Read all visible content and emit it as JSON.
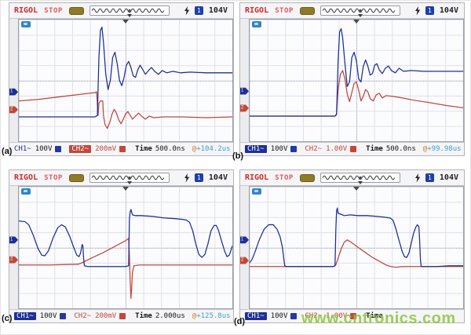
{
  "watermark": {
    "text": "www.cntronics.com",
    "color": "#8cc63e"
  },
  "colors": {
    "ch1_trace": "#1d2f96",
    "ch2_trace": "#c2473a"
  },
  "panels": [
    {
      "label": "(a)",
      "header": {
        "brand": "RIGOL",
        "status": "STOP",
        "trigger_source": "1",
        "trigger_level": "104V"
      },
      "footer": {
        "ch1": {
          "label": "CH1~",
          "value": "100V",
          "selected": false
        },
        "ch2": {
          "label": "CH2~",
          "value": "200mV",
          "selected": true
        },
        "time": {
          "label": "Time",
          "value": "500.0ns"
        },
        "offset": {
          "at": "@",
          "value": "+104.2us"
        }
      },
      "markers": {
        "ch1": 95,
        "ch2": 118
      },
      "waves": {
        "ch1": [
          [
            0,
            128
          ],
          [
            100,
            128
          ],
          [
            103,
            126
          ],
          [
            105,
            50
          ],
          [
            107,
            14
          ],
          [
            109,
            10
          ],
          [
            111,
            30
          ],
          [
            114,
            72
          ],
          [
            117,
            92
          ],
          [
            120,
            80
          ],
          [
            123,
            50
          ],
          [
            126,
            43
          ],
          [
            129,
            58
          ],
          [
            132,
            80
          ],
          [
            135,
            87
          ],
          [
            138,
            76
          ],
          [
            141,
            60
          ],
          [
            144,
            55
          ],
          [
            147,
            63
          ],
          [
            150,
            74
          ],
          [
            153,
            76
          ],
          [
            156,
            66
          ],
          [
            159,
            60
          ],
          [
            162,
            65
          ],
          [
            166,
            72
          ],
          [
            170,
            67
          ],
          [
            174,
            63
          ],
          [
            178,
            68
          ],
          [
            183,
            72
          ],
          [
            188,
            67
          ],
          [
            194,
            70
          ],
          [
            202,
            68
          ],
          [
            212,
            70
          ],
          [
            225,
            69
          ],
          [
            245,
            70
          ],
          [
            280,
            70
          ]
        ],
        "ch2": [
          [
            0,
            107
          ],
          [
            25,
            105
          ],
          [
            50,
            102
          ],
          [
            75,
            99
          ],
          [
            100,
            96
          ],
          [
            102,
            95
          ],
          [
            103,
            112
          ],
          [
            104,
            126
          ],
          [
            105,
            110
          ],
          [
            107,
            107
          ],
          [
            110,
            107
          ],
          [
            111,
            126
          ],
          [
            113,
            138
          ],
          [
            116,
            143
          ],
          [
            119,
            136
          ],
          [
            122,
            125
          ],
          [
            125,
            118
          ],
          [
            128,
            123
          ],
          [
            131,
            132
          ],
          [
            134,
            137
          ],
          [
            137,
            131
          ],
          [
            140,
            124
          ],
          [
            143,
            121
          ],
          [
            146,
            126
          ],
          [
            149,
            131
          ],
          [
            153,
            127
          ],
          [
            157,
            123
          ],
          [
            161,
            127
          ],
          [
            166,
            131
          ],
          [
            171,
            127
          ],
          [
            177,
            129
          ],
          [
            190,
            128
          ],
          [
            215,
            128
          ],
          [
            245,
            129
          ],
          [
            280,
            128
          ]
        ]
      }
    },
    {
      "label": "(b)",
      "header": {
        "brand": "RIGOL",
        "status": "STOP",
        "trigger_source": "1",
        "trigger_level": "104V"
      },
      "footer": {
        "ch1": {
          "label": "CH1~",
          "value": "100V",
          "selected": true
        },
        "ch2": {
          "label": "CH2~",
          "value": "1.00V",
          "selected": false
        },
        "time": {
          "label": "Time",
          "value": "500.0ns"
        },
        "offset": {
          "at": "@",
          "value": "+99.98us"
        }
      },
      "markers": {
        "ch1": 94,
        "ch2": 116
      },
      "waves": {
        "ch1": [
          [
            0,
            127
          ],
          [
            112,
            127
          ],
          [
            114,
            125
          ],
          [
            116,
            55
          ],
          [
            118,
            16
          ],
          [
            120,
            12
          ],
          [
            122,
            24
          ],
          [
            125,
            58
          ],
          [
            128,
            88
          ],
          [
            131,
            82
          ],
          [
            134,
            50
          ],
          [
            137,
            43
          ],
          [
            140,
            54
          ],
          [
            143,
            78
          ],
          [
            146,
            82
          ],
          [
            149,
            62
          ],
          [
            152,
            53
          ],
          [
            155,
            61
          ],
          [
            158,
            73
          ],
          [
            161,
            71
          ],
          [
            164,
            60
          ],
          [
            167,
            58
          ],
          [
            170,
            66
          ],
          [
            174,
            71
          ],
          [
            178,
            64
          ],
          [
            182,
            61
          ],
          [
            186,
            67
          ],
          [
            191,
            70
          ],
          [
            196,
            64
          ],
          [
            202,
            68
          ],
          [
            212,
            67
          ],
          [
            228,
            68
          ],
          [
            252,
            68
          ],
          [
            280,
            68
          ]
        ],
        "ch2": [
          [
            0,
            127
          ],
          [
            112,
            127
          ],
          [
            114,
            124
          ],
          [
            116,
            92
          ],
          [
            119,
            72
          ],
          [
            122,
            67
          ],
          [
            125,
            78
          ],
          [
            128,
            98
          ],
          [
            131,
            108
          ],
          [
            134,
            96
          ],
          [
            137,
            84
          ],
          [
            140,
            82
          ],
          [
            143,
            93
          ],
          [
            146,
            107
          ],
          [
            149,
            101
          ],
          [
            152,
            92
          ],
          [
            155,
            95
          ],
          [
            158,
            104
          ],
          [
            162,
            107
          ],
          [
            166,
            99
          ],
          [
            170,
            97
          ],
          [
            174,
            103
          ],
          [
            179,
            100
          ],
          [
            188,
            101
          ],
          [
            200,
            103
          ],
          [
            215,
            106
          ],
          [
            235,
            109
          ],
          [
            258,
            113
          ],
          [
            280,
            116
          ]
        ]
      }
    },
    {
      "label": "(c)",
      "header": {
        "brand": "RIGOL",
        "status": "STOP",
        "trigger_source": "1",
        "trigger_level": "104V"
      },
      "footer": {
        "ch1": {
          "label": "CH1~",
          "value": "100V",
          "selected": true
        },
        "ch2": {
          "label": "CH2~",
          "value": "200mV",
          "selected": false
        },
        "time": {
          "label": "Time",
          "value": "2.000us"
        },
        "offset": {
          "at": "@",
          "value": "+125.8us"
        }
      },
      "markers": {
        "ch1": 70,
        "ch2": 96
      },
      "waves": {
        "ch1": [
          [
            0,
            45
          ],
          [
            8,
            46
          ],
          [
            13,
            50
          ],
          [
            19,
            64
          ],
          [
            25,
            81
          ],
          [
            30,
            90
          ],
          [
            34,
            91
          ],
          [
            39,
            84
          ],
          [
            45,
            67
          ],
          [
            51,
            54
          ],
          [
            56,
            50
          ],
          [
            61,
            53
          ],
          [
            67,
            66
          ],
          [
            72,
            80
          ],
          [
            76,
            90
          ],
          [
            79,
            92
          ],
          [
            81,
            87
          ],
          [
            83,
            76
          ],
          [
            84,
            78
          ],
          [
            85,
            95
          ],
          [
            86,
            104
          ],
          [
            90,
            105
          ],
          [
            140,
            105
          ],
          [
            144,
            104
          ],
          [
            145,
            42
          ],
          [
            146,
            33
          ],
          [
            147,
            30
          ],
          [
            149,
            37
          ],
          [
            153,
            38
          ],
          [
            160,
            38
          ],
          [
            175,
            39
          ],
          [
            190,
            41
          ],
          [
            205,
            42
          ],
          [
            215,
            43
          ],
          [
            220,
            44
          ],
          [
            224,
            47
          ],
          [
            228,
            58
          ],
          [
            232,
            75
          ],
          [
            236,
            89
          ],
          [
            240,
            93
          ],
          [
            244,
            89
          ],
          [
            248,
            75
          ],
          [
            252,
            58
          ],
          [
            256,
            51
          ],
          [
            259,
            51
          ],
          [
            262,
            58
          ],
          [
            266,
            72
          ],
          [
            270,
            85
          ],
          [
            273,
            92
          ],
          [
            276,
            90
          ],
          [
            278,
            84
          ],
          [
            280,
            78
          ]
        ],
        "ch2": [
          [
            0,
            103
          ],
          [
            40,
            103
          ],
          [
            78,
            102
          ],
          [
            83,
            100
          ],
          [
            95,
            94
          ],
          [
            110,
            87
          ],
          [
            125,
            79
          ],
          [
            140,
            71
          ],
          [
            144,
            68
          ],
          [
            145,
            90
          ],
          [
            146,
            125
          ],
          [
            147,
            147
          ],
          [
            148,
            132
          ],
          [
            149,
            112
          ],
          [
            151,
            104
          ],
          [
            158,
            103
          ],
          [
            180,
            103
          ],
          [
            220,
            103
          ],
          [
            260,
            103
          ],
          [
            280,
            103
          ]
        ]
      }
    },
    {
      "label": "(d)",
      "header": {
        "brand": "RIGOL",
        "status": "STOP",
        "trigger_source": "1",
        "trigger_level": "104V"
      },
      "footer": {
        "ch1": {
          "label": "CH1~",
          "value": "100V",
          "selected": true
        },
        "ch2": {
          "label": "CH2~",
          "value": "1.00V",
          "selected": false
        },
        "time": {
          "label": "Time",
          "value": ""
        },
        "offset": {
          "at": "",
          "value": ""
        }
      },
      "markers": {
        "ch1": 70,
        "ch2": 97
      },
      "waves": {
        "ch1": [
          [
            0,
            100
          ],
          [
            3,
            96
          ],
          [
            7,
            86
          ],
          [
            13,
            69
          ],
          [
            19,
            56
          ],
          [
            25,
            50
          ],
          [
            31,
            50
          ],
          [
            36,
            56
          ],
          [
            40,
            66
          ],
          [
            43,
            80
          ],
          [
            45,
            96
          ],
          [
            46,
            104
          ],
          [
            48,
            105
          ],
          [
            80,
            105
          ],
          [
            110,
            105
          ],
          [
            112,
            104
          ],
          [
            113,
            58
          ],
          [
            114,
            32
          ],
          [
            115,
            28
          ],
          [
            116,
            35
          ],
          [
            119,
            36
          ],
          [
            124,
            38
          ],
          [
            132,
            37
          ],
          [
            142,
            38
          ],
          [
            154,
            38
          ],
          [
            166,
            39
          ],
          [
            176,
            40
          ],
          [
            184,
            41
          ],
          [
            188,
            44
          ],
          [
            192,
            56
          ],
          [
            196,
            71
          ],
          [
            200,
            85
          ],
          [
            203,
            92
          ],
          [
            206,
            93
          ],
          [
            209,
            87
          ],
          [
            212,
            74
          ],
          [
            215,
            61
          ],
          [
            218,
            53
          ],
          [
            220,
            50
          ],
          [
            222,
            53
          ],
          [
            223,
            72
          ],
          [
            224,
            96
          ],
          [
            225,
            105
          ],
          [
            230,
            105
          ],
          [
            245,
            105
          ],
          [
            262,
            104
          ],
          [
            280,
            104
          ]
        ],
        "ch2": [
          [
            0,
            105
          ],
          [
            60,
            105
          ],
          [
            110,
            105
          ],
          [
            113,
            103
          ],
          [
            116,
            94
          ],
          [
            120,
            82
          ],
          [
            124,
            73
          ],
          [
            128,
            70
          ],
          [
            133,
            73
          ],
          [
            141,
            79
          ],
          [
            151,
            86
          ],
          [
            161,
            93
          ],
          [
            170,
            98
          ],
          [
            179,
            103
          ],
          [
            185,
            105
          ],
          [
            192,
            106
          ],
          [
            200,
            105
          ],
          [
            240,
            105
          ],
          [
            280,
            105
          ]
        ]
      }
    }
  ]
}
